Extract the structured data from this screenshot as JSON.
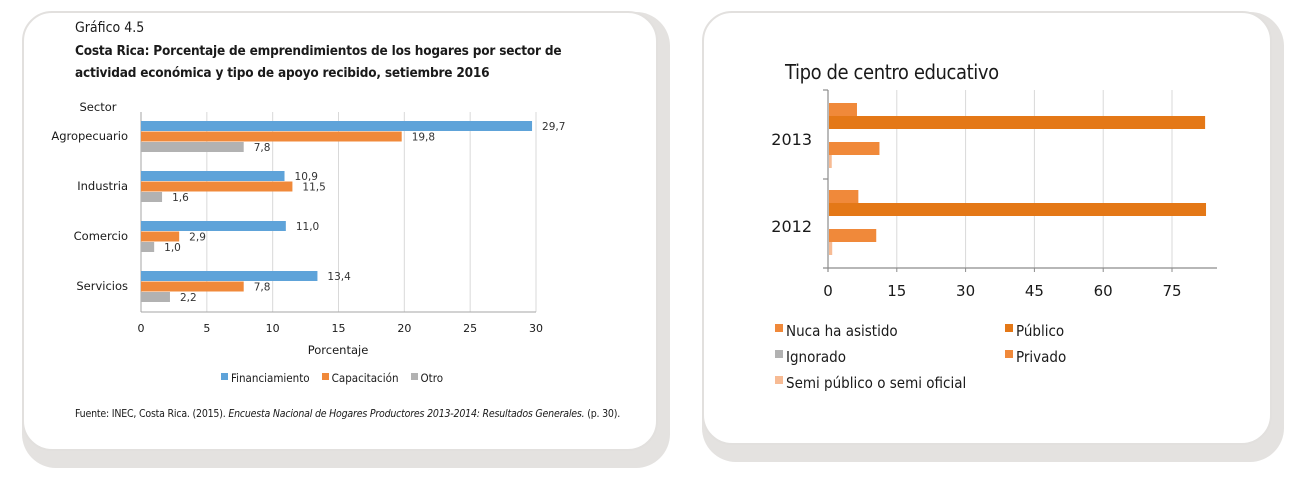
{
  "left_panel": {
    "figure_number": "Gráfico 4.5",
    "title": "Costa Rica: Porcentaje de emprendimientos de los hogares por sector de actividad económica y tipo de apoyo recibido, setiembre 2016",
    "source_prefix": "Fuente: INEC, Costa Rica. (2015). ",
    "source_italic": "Encuesta Nacional de Hogares Productores 2013-2014: Resultados Generales.",
    "source_suffix": " (p. 30)."
  },
  "right_panel": {
    "title": "Tipo de centro educativo"
  },
  "chart_data": [
    {
      "type": "bar",
      "orientation": "horizontal",
      "title": "Costa Rica: Porcentaje de emprendimientos de los hogares por sector de actividad económica y tipo de apoyo recibido, setiembre 2016",
      "xlabel": "Porcentaje",
      "ylabel": "Sector",
      "categories": [
        "Agropecuario",
        "Industria",
        "Comercio",
        "Servicios"
      ],
      "series": [
        {
          "name": "Financiamiento",
          "color": "#5ea3d9",
          "values": [
            29.7,
            10.9,
            11.0,
            13.4
          ],
          "labels": [
            "29,7",
            "10,9",
            "11,0",
            "13,4"
          ]
        },
        {
          "name": "Capacitación",
          "color": "#f0893a",
          "values": [
            19.8,
            11.5,
            2.9,
            7.8
          ],
          "labels": [
            "19,8",
            "11,5",
            "2,9",
            "7,8"
          ]
        },
        {
          "name": "Otro",
          "color": "#b2b2b2",
          "values": [
            7.8,
            1.6,
            1.0,
            2.2
          ],
          "labels": [
            "7,8",
            "1,6",
            "1,0",
            "2,2"
          ]
        }
      ],
      "xlim": [
        0,
        30
      ],
      "xticks": [
        0,
        5,
        10,
        15,
        20,
        25,
        30
      ],
      "grid": true,
      "legend": "bottom"
    },
    {
      "type": "bar",
      "orientation": "horizontal",
      "title": "Tipo de centro educativo",
      "categories": [
        "2013",
        "2012"
      ],
      "series": [
        {
          "name": "Nuca ha asistido",
          "color": "#f0893a",
          "values": [
            6.1,
            6.4
          ]
        },
        {
          "name": "Público",
          "color": "#e47817",
          "values": [
            82.0,
            82.2
          ]
        },
        {
          "name": "Ignorado",
          "color": "#b2b2b2",
          "values": [
            0,
            0
          ]
        },
        {
          "name": "Privado",
          "color": "#f0893a",
          "values": [
            11.0,
            10.3
          ]
        },
        {
          "name": "Semi público o semi oficial",
          "color": "#f7bb94",
          "values": [
            0.6,
            0.7
          ]
        }
      ],
      "xlim": [
        0,
        85
      ],
      "xticks": [
        0,
        15,
        30,
        45,
        60,
        75
      ],
      "grid": true,
      "legend": "bottom"
    }
  ]
}
